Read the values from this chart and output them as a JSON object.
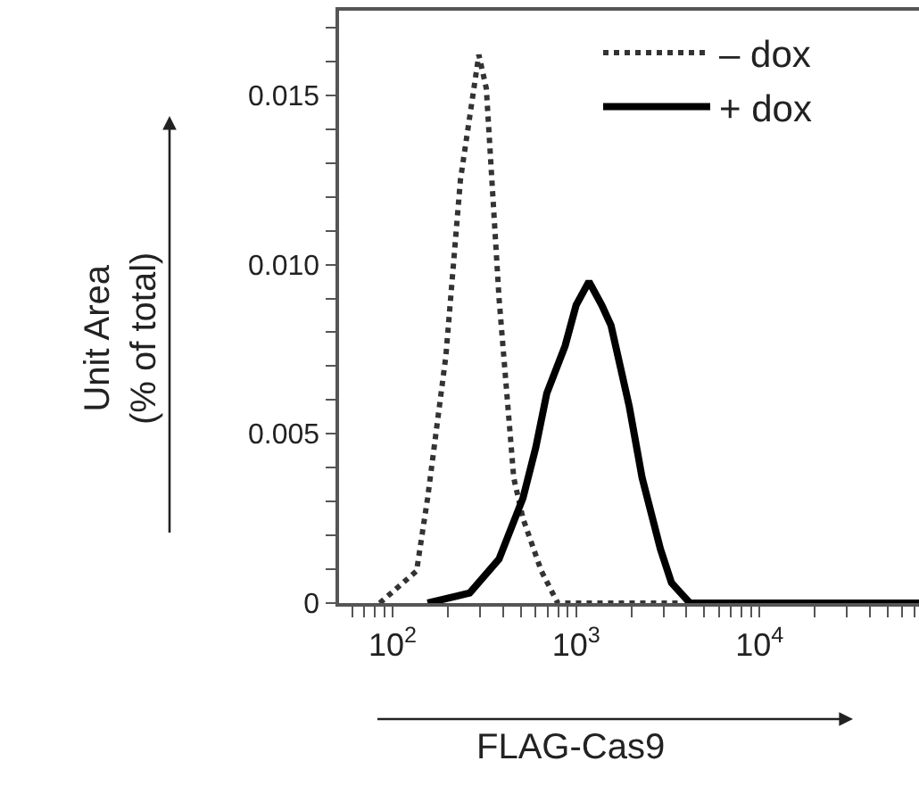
{
  "chart_data": {
    "type": "line",
    "xlabel": "FLAG-Cas9",
    "ylabel": "Unit Area\n(% of total)",
    "log": "x",
    "legend": "top right",
    "marker": "none",
    "xlim": [
      51,
      74000
    ],
    "xticks": [
      {
        "value": 60,
        "label": null
      },
      {
        "value": 70,
        "label": null
      },
      {
        "value": 80,
        "label": null
      },
      {
        "value": 90,
        "label": null
      },
      {
        "value": 100,
        "label": "10$^{2}$"
      },
      {
        "value": 200,
        "label": null
      },
      {
        "value": 300,
        "label": null
      },
      {
        "value": 400,
        "label": null
      },
      {
        "value": 500,
        "label": null
      },
      {
        "value": 600,
        "label": null
      },
      {
        "value": 700,
        "label": null
      },
      {
        "value": 800,
        "label": null
      },
      {
        "value": 900,
        "label": null
      },
      {
        "value": 1000,
        "label": "10$^{3}$"
      },
      {
        "value": 2000,
        "label": null
      },
      {
        "value": 3000,
        "label": null
      },
      {
        "value": 4000,
        "label": null
      },
      {
        "value": 5000,
        "label": null
      },
      {
        "value": 6000,
        "label": null
      },
      {
        "value": 7000,
        "label": null
      },
      {
        "value": 8000,
        "label": null
      },
      {
        "value": 9000,
        "label": null
      },
      {
        "value": 10000,
        "label": "10$^{4}$"
      },
      {
        "value": 20000,
        "label": null
      },
      {
        "value": 30000,
        "label": null
      },
      {
        "value": 40000,
        "label": null
      },
      {
        "value": 50000,
        "label": null
      },
      {
        "value": 60000,
        "label": null
      },
      {
        "value": 70000,
        "label": null
      }
    ],
    "ylim": [
      0,
      0.0175
    ],
    "yticks": [
      {
        "value": 0,
        "label": "0"
      },
      {
        "value": 0.001,
        "label": null
      },
      {
        "value": 0.002,
        "label": null
      },
      {
        "value": 0.003,
        "label": null
      },
      {
        "value": 0.004,
        "label": null
      },
      {
        "value": 0.005,
        "label": "0.005"
      },
      {
        "value": 0.006,
        "label": null
      },
      {
        "value": 0.007,
        "label": null
      },
      {
        "value": 0.008,
        "label": null
      },
      {
        "value": 0.009,
        "label": null
      },
      {
        "value": 0.01,
        "label": "0.010"
      },
      {
        "value": 0.011,
        "label": null
      },
      {
        "value": 0.012,
        "label": null
      },
      {
        "value": 0.013,
        "label": null
      },
      {
        "value": 0.014,
        "label": null
      },
      {
        "value": 0.015,
        "label": "0.015"
      },
      {
        "value": 0.016,
        "label": null
      },
      {
        "value": 0.017,
        "label": null
      }
    ],
    "series": [
      {
        "name": "– dox",
        "color": "#333333",
        "line_style": "dotted",
        "x": [
          85,
          135,
          155,
          195,
          234,
          295,
          324,
          380,
          457,
          513,
          646,
          794,
          3800
        ],
        "values": [
          0,
          0.00095,
          0.0031,
          0.0073,
          0.0125,
          0.0162,
          0.0152,
          0.009,
          0.0037,
          0.0025,
          0.00095,
          0,
          0
        ]
      },
      {
        "name": "+ dox",
        "color": "#000000",
        "line_style": "solid",
        "x": [
          155,
          263,
          380,
          513,
          603,
          692,
          871,
          1000,
          1175,
          1380,
          1550,
          1950,
          2290,
          2880,
          3310,
          4170,
          74000
        ],
        "values": [
          0,
          0.0003,
          0.0013,
          0.0031,
          0.0046,
          0.0062,
          0.0076,
          0.0088,
          0.0095,
          0.0088,
          0.0082,
          0.0058,
          0.0037,
          0.0016,
          0.0006,
          0,
          0
        ]
      }
    ]
  }
}
